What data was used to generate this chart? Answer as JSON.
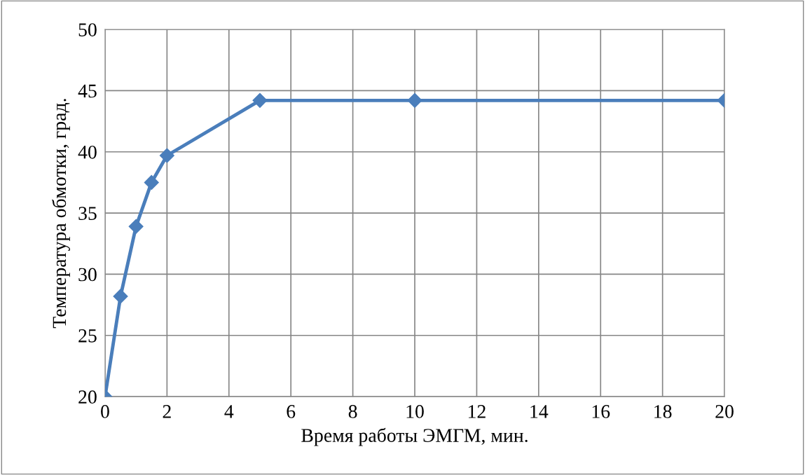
{
  "chart_data": {
    "type": "line",
    "xlabel": "Время работы ЭМГМ, мин.",
    "ylabel": "Температура обмотки, град.",
    "x": [
      0,
      0.5,
      1,
      1.5,
      2,
      5,
      10,
      20
    ],
    "series": [
      {
        "color": "#4a7ebb",
        "values": [
          20,
          28.2,
          33.9,
          37.5,
          39.7,
          44.2,
          44.2,
          44.2
        ]
      }
    ],
    "xlim": [
      0,
      20
    ],
    "xticks": [
      0,
      2,
      4,
      6,
      8,
      10,
      12,
      14,
      16,
      18,
      20
    ],
    "ylim": [
      20,
      50
    ],
    "yticks": [
      20,
      25,
      30,
      35,
      40,
      45,
      50
    ],
    "grid": true,
    "marker": "diamond",
    "line_style": "solid"
  }
}
